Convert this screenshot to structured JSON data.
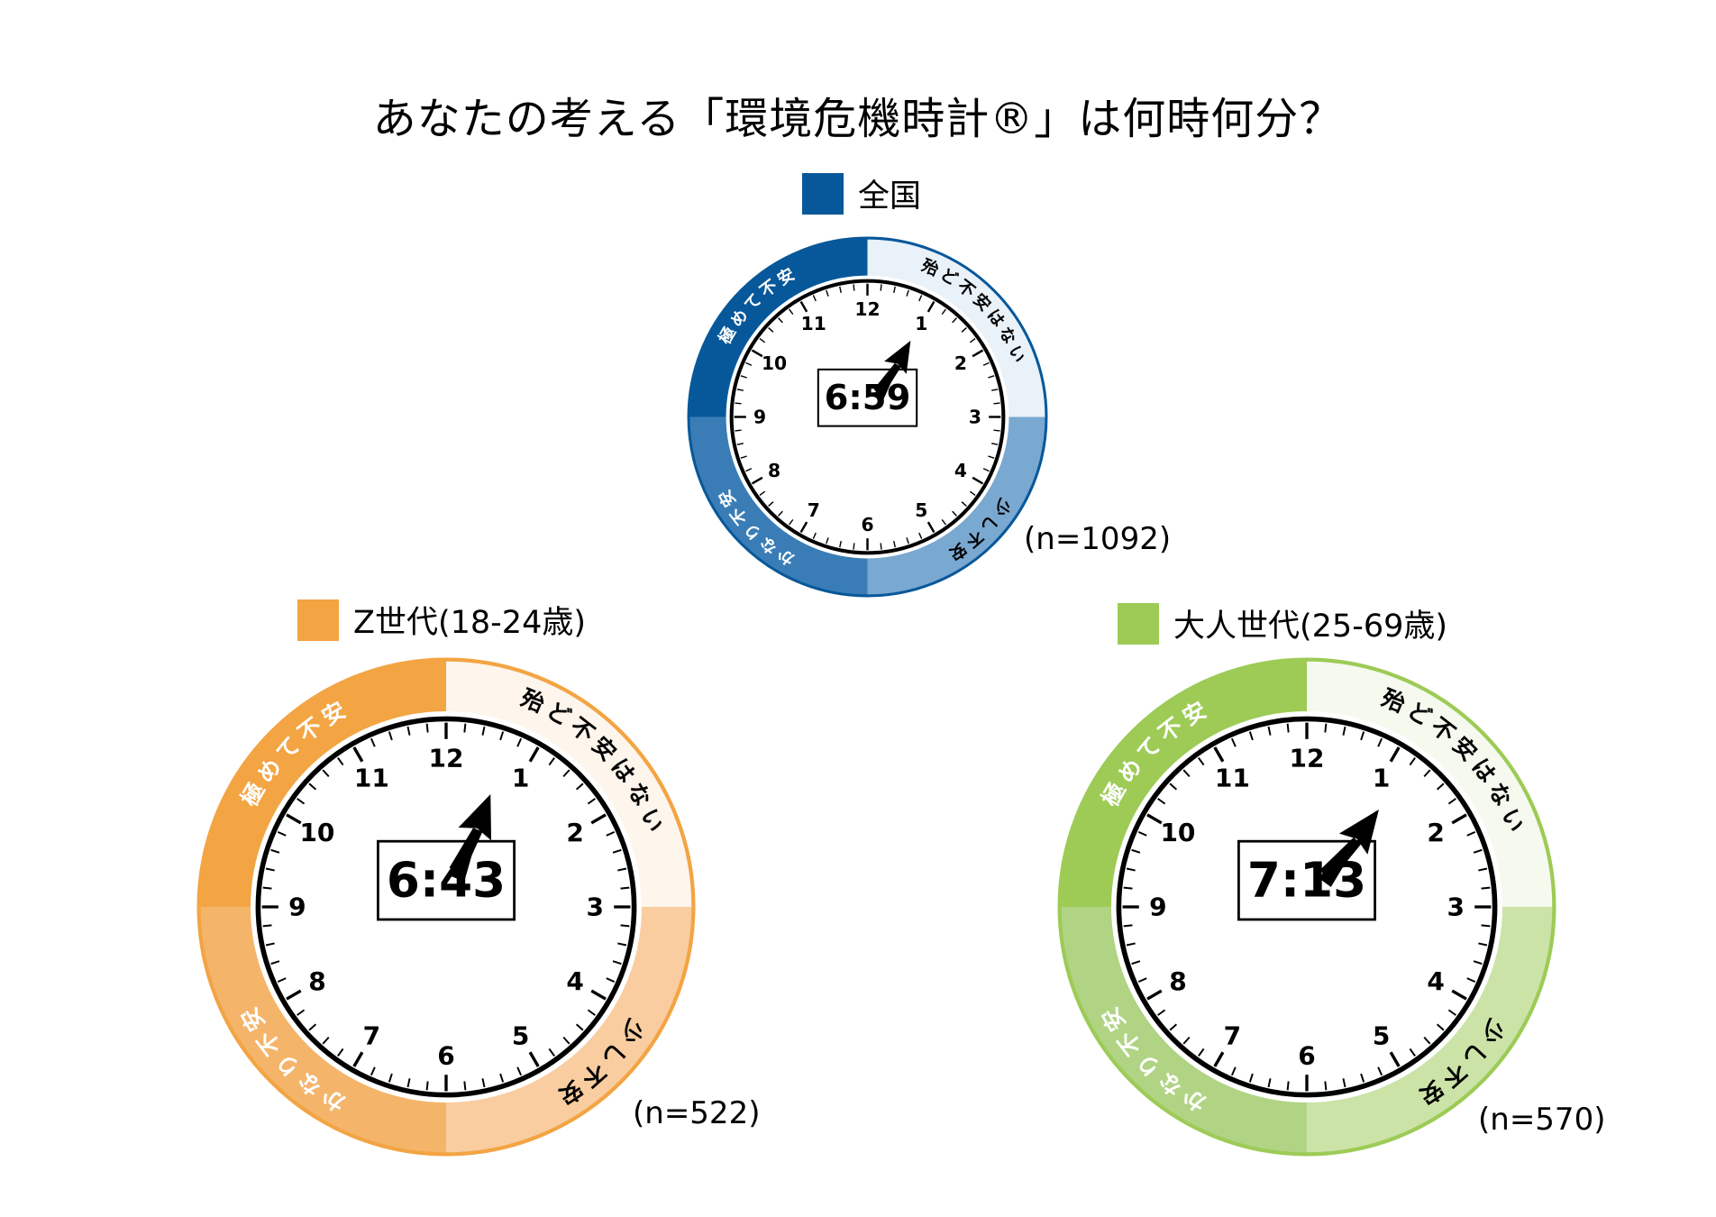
{
  "title": "あなたの考える「環境危機時計®」は何時何分？",
  "zones": [
    "極めて不安",
    "殆ど不安はない",
    "少し不安",
    "かなり不安"
  ],
  "clocks": [
    {
      "id": "all",
      "legend": "全国",
      "time": "6:59",
      "n": "(n=1092)",
      "colors": {
        "dark": "#07589A",
        "light": "#E9F1F9",
        "midR": "#79A8D0",
        "midL": "#3A7DB6"
      }
    },
    {
      "id": "genz",
      "legend": "Z世代(18-24歳)",
      "time": "6:43",
      "n": "(n=522)",
      "colors": {
        "dark": "#F3A443",
        "light": "#FEF5EC",
        "midR": "#F9CDA0",
        "midL": "#F4B56B"
      }
    },
    {
      "id": "adult",
      "legend": "大人世代(25-69歳)",
      "time": "7:13",
      "n": "(n=570)",
      "colors": {
        "dark": "#9DCB56",
        "light": "#F5F9EE",
        "midR": "#CCE3A8",
        "midL": "#B0D484"
      }
    }
  ]
}
